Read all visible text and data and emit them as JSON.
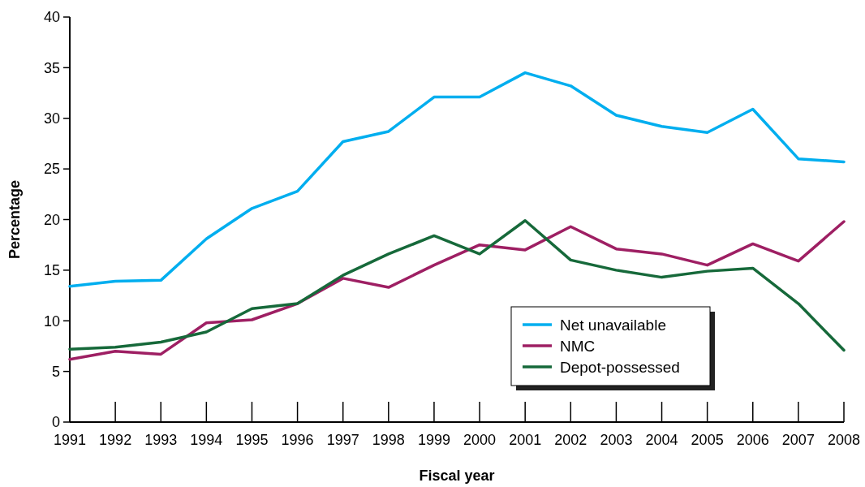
{
  "chart_data": {
    "type": "line",
    "xlabel": "Fiscal year",
    "ylabel": "Percentage",
    "x": [
      1991,
      1992,
      1993,
      1994,
      1995,
      1996,
      1997,
      1998,
      1999,
      2000,
      2001,
      2002,
      2003,
      2004,
      2005,
      2006,
      2007,
      2008
    ],
    "xlim": [
      1991,
      2008
    ],
    "xticks": [
      1991,
      1992,
      1993,
      1994,
      1995,
      1996,
      1997,
      1998,
      1999,
      2000,
      2001,
      2002,
      2003,
      2004,
      2005,
      2006,
      2007,
      2008
    ],
    "ylim": [
      0,
      40
    ],
    "yticks": [
      0,
      5,
      10,
      15,
      20,
      25,
      30,
      35,
      40
    ],
    "grid": false,
    "legend": "bottom right",
    "marker": "none",
    "line_style": "solid",
    "series": [
      {
        "name": "Net unavailable",
        "color": "#00aeef",
        "values": [
          13.4,
          13.9,
          14.0,
          18.1,
          21.1,
          22.8,
          27.7,
          28.7,
          32.1,
          32.1,
          34.5,
          33.2,
          30.3,
          29.2,
          28.6,
          30.9,
          26.0,
          25.7
        ]
      },
      {
        "name": "NMC",
        "color": "#9e1f63",
        "values": [
          6.2,
          7.0,
          6.7,
          9.8,
          10.1,
          11.7,
          14.2,
          13.3,
          15.5,
          17.5,
          17.0,
          19.3,
          17.1,
          16.6,
          15.5,
          17.6,
          15.9,
          19.8
        ]
      },
      {
        "name": "Depot-possessed",
        "color": "#16693a",
        "values": [
          7.2,
          7.4,
          7.9,
          8.9,
          11.2,
          11.7,
          14.5,
          16.6,
          18.4,
          16.6,
          19.9,
          16.0,
          15.0,
          14.3,
          14.9,
          15.2,
          11.7,
          7.1
        ]
      }
    ]
  }
}
